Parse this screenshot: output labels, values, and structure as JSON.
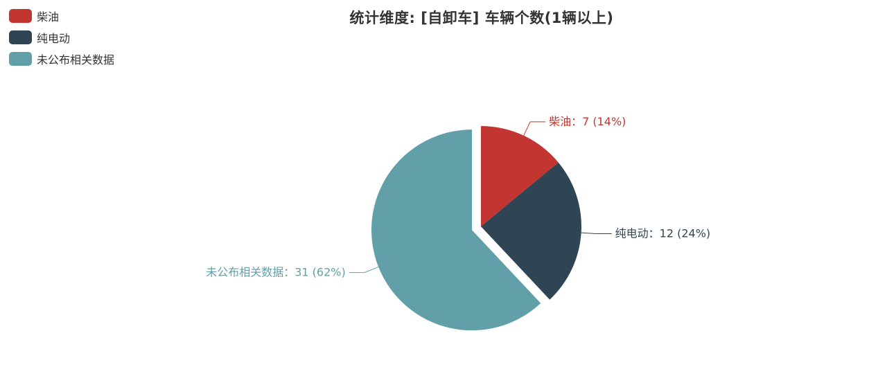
{
  "chart_data": {
    "type": "pie",
    "title": "统计维度: [自卸车] 车辆个数(1辆以上)",
    "legend_position": "top-left",
    "slices": [
      {
        "name": "柴油",
        "value": 7,
        "percent": "14%",
        "color": "#c23531",
        "label": "柴油：7 (14%)"
      },
      {
        "name": "纯电动",
        "value": 12,
        "percent": "24%",
        "color": "#2f4554",
        "label": "纯电动：12 (24%)"
      },
      {
        "name": "未公布相关数据",
        "value": 31,
        "percent": "62%",
        "color": "#61a0a8",
        "label": "未公布相关数据：31 (62%)",
        "exploded": true
      }
    ]
  }
}
